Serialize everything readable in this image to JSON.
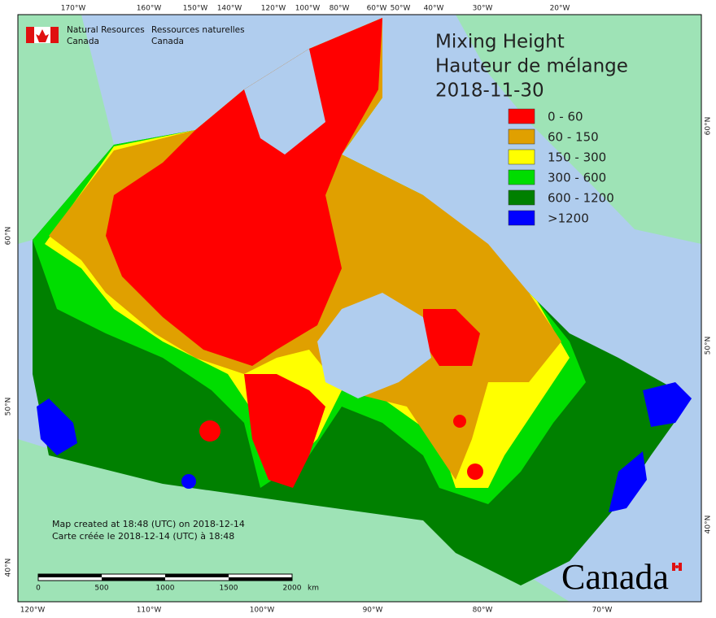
{
  "header": {
    "agency_en": [
      "Natural Resources",
      "Canada"
    ],
    "agency_fr": [
      "Ressources naturelles",
      "Canada"
    ]
  },
  "title": [
    "Mixing Height",
    "Hauteur de mélange",
    "2018-11-30"
  ],
  "legend": [
    {
      "label": "0 - 60",
      "color": "#ff0000"
    },
    {
      "label": "60 - 150",
      "color": "#e0a000"
    },
    {
      "label": "150 - 300",
      "color": "#ffff00"
    },
    {
      "label": "300 - 600",
      "color": "#00dd00"
    },
    {
      "label": "600 - 1200",
      "color": "#008000"
    },
    {
      "label": ">1200",
      "color": "#0000ff"
    }
  ],
  "top_labels": [
    "170°W",
    "160°W",
    "150°W",
    "140°W",
    "120°W",
    "100°W",
    "80°W",
    "60°W",
    "50°W",
    "40°W",
    "30°W",
    "20°W"
  ],
  "bottom_labels": [
    "120°W",
    "110°W",
    "100°W",
    "90°W",
    "80°W",
    "70°W"
  ],
  "left_labels": [
    "60°N",
    "50°N",
    "40°N"
  ],
  "right_labels": [
    "60°N",
    "50°N",
    "40°N"
  ],
  "credits": [
    "Map created at 18:48 (UTC) on 2018-12-14",
    "Carte créée le 2018-12-14 (UTC) à 18:48"
  ],
  "scale": {
    "labels": [
      "0",
      "500",
      "1000",
      "1500",
      "2000"
    ],
    "unit": "km"
  },
  "wordmark": "Canada"
}
